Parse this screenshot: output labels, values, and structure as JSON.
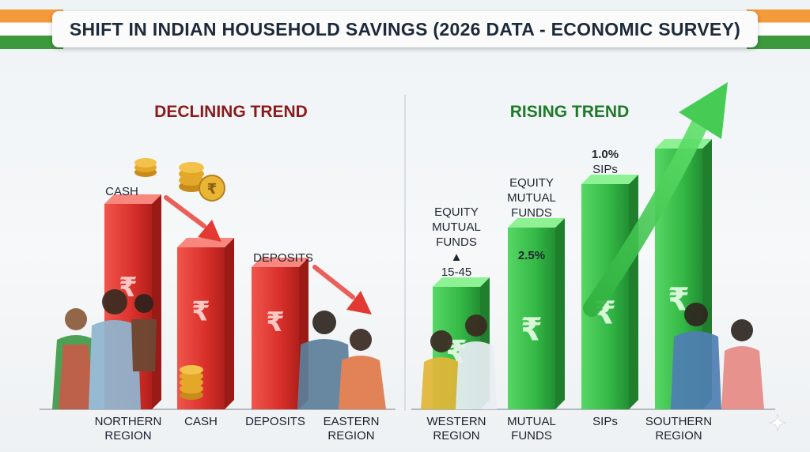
{
  "title": "SHIFT IN INDIAN HOUSEHOLD SAVINGS (2026 DATA - ECONOMIC SURVEY)",
  "colors": {
    "decline": "#e23a32",
    "rise": "#3cc44c",
    "decline_heading": "#8b1a1a",
    "rise_heading": "#1e7a2a"
  },
  "icons": [
    "rupee-icon",
    "coin-stack-icon",
    "down-arrow-icon",
    "up-arrow-icon",
    "people-illustration",
    "sparkle-icon"
  ],
  "chart_data": {
    "type": "bar",
    "groups": [
      {
        "heading": "DECLINING TREND",
        "trend": "down",
        "bars": [
          {
            "tick": [
              "NORTHERN",
              "REGION"
            ],
            "label": [
              "CASH"
            ],
            "value": 260
          },
          {
            "tick": [
              "CASH"
            ],
            "label": [],
            "value": 205
          },
          {
            "tick": [
              "DEPOSITS"
            ],
            "label": [
              "DEPOSITS"
            ],
            "value": 180
          },
          {
            "tick": [
              "EASTERN",
              "REGION"
            ],
            "label": [],
            "value": 0
          }
        ]
      },
      {
        "heading": "RISING TREND",
        "trend": "up",
        "bars": [
          {
            "tick": [
              "WESTERN",
              "REGION"
            ],
            "label": [
              "EQUITY",
              "MUTUAL",
              "FUNDS",
              "▲",
              "15-45"
            ],
            "value": 155
          },
          {
            "tick": [
              "MUTUAL",
              "FUNDS"
            ],
            "label": [
              "EQUITY",
              "MUTUAL",
              "FUNDS",
              "2.5%"
            ],
            "value": 230
          },
          {
            "tick": [
              "SIPs"
            ],
            "label": [
              "1.0%",
              "SIPs"
            ],
            "value": 285
          },
          {
            "tick": [
              "SOUTHERN",
              "REGION"
            ],
            "label": [],
            "value": 330
          }
        ]
      }
    ]
  }
}
